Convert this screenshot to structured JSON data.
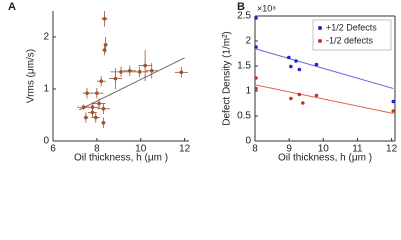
{
  "chart_data": [
    {
      "type": "scatter",
      "panel_label": "A",
      "xlabel": "Oil thickness, h (μm )",
      "ylabel": "Vrms (μm/s)",
      "xlim": [
        6,
        12.2
      ],
      "ylim": [
        0,
        2.5
      ],
      "xticks": [
        6,
        8,
        10,
        12
      ],
      "yticks": [
        0,
        1,
        2
      ],
      "box": false,
      "series": [
        {
          "color": "#a0522d",
          "x": [
            8.35,
            8.4,
            8.35,
            9.1,
            9.5,
            9.95,
            10.5,
            11.85,
            8.2,
            8.85,
            7.55,
            8.0,
            7.4,
            7.8,
            8.1,
            8.3,
            7.8,
            7.5,
            7.95,
            8.3,
            10.2
          ],
          "y": [
            2.35,
            1.85,
            1.75,
            1.33,
            1.35,
            1.33,
            1.35,
            1.32,
            1.15,
            1.2,
            0.92,
            0.92,
            0.65,
            0.65,
            0.72,
            0.62,
            0.55,
            0.45,
            0.45,
            0.35,
            1.45
          ],
          "xerr": [
            0.15,
            0.1,
            0.1,
            0.5,
            0.3,
            0.4,
            0.3,
            0.3,
            0.2,
            0.3,
            0.2,
            0.3,
            0.3,
            0.3,
            0.3,
            0.3,
            0.2,
            0.1,
            0.2,
            0.1,
            0.3
          ],
          "yerr": [
            0.15,
            0.15,
            0.1,
            0.1,
            0.1,
            0.1,
            0.15,
            0.1,
            0.1,
            0.2,
            0.1,
            0.1,
            0.05,
            0.1,
            0.1,
            0.1,
            0.1,
            0.1,
            0.1,
            0.1,
            0.3
          ]
        }
      ],
      "lines": [
        {
          "color": "#666666",
          "x": [
            7.2,
            12
          ],
          "y": [
            0.6,
            1.6
          ]
        }
      ]
    },
    {
      "type": "scatter",
      "panel_label": "B",
      "xlabel": "Oil thickness, h (μm )",
      "ylabel": "Defect Density (1/m²)",
      "axis_multiplier": "×10⁸",
      "xlim": [
        8,
        12.1
      ],
      "ylim": [
        0,
        2.5
      ],
      "xticks": [
        8,
        9,
        10,
        11,
        12
      ],
      "yticks": [
        0,
        0.5,
        1,
        1.5,
        2,
        2.5
      ],
      "box": true,
      "legend": "upper right",
      "series": [
        {
          "name": "+1/2 Defects",
          "color": "#2222cc",
          "x": [
            8.03,
            8.03,
            8.99,
            9.05,
            9.2,
            9.3,
            9.8,
            12.05
          ],
          "y": [
            2.46,
            1.88,
            1.67,
            1.49,
            1.6,
            1.43,
            1.53,
            0.79
          ]
        },
        {
          "name": "-1/2 defects",
          "color": "#cc3322",
          "x": [
            8.03,
            8.03,
            9.05,
            9.3,
            9.4,
            9.8,
            12.05
          ],
          "y": [
            1.26,
            1.05,
            0.85,
            0.93,
            0.76,
            0.91,
            0.6
          ]
        }
      ],
      "lines": [
        {
          "color": "#6666dd",
          "x": [
            8.03,
            12.05
          ],
          "y": [
            1.84,
            1.05
          ]
        },
        {
          "color": "#dd6655",
          "x": [
            8.03,
            12.05
          ],
          "y": [
            1.12,
            0.55
          ]
        }
      ]
    }
  ]
}
